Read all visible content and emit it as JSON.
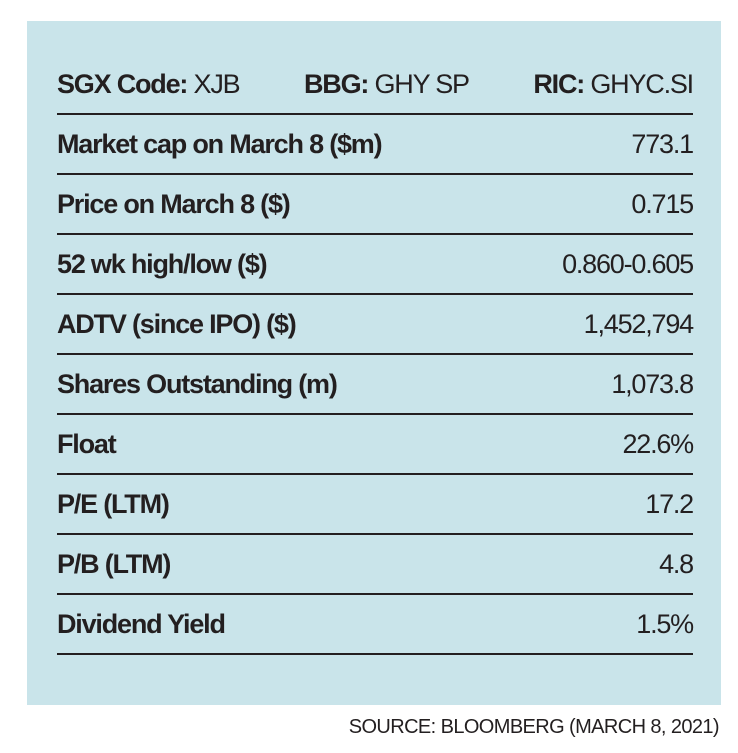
{
  "header": {
    "sgx_label": "SGX Code:",
    "sgx_value": "XJB",
    "bbg_label": "BBG:",
    "bbg_value": "GHY SP",
    "ric_label": "RIC:",
    "ric_value": "GHYC.SI"
  },
  "rows": [
    {
      "label": "Market cap on March 8 ($m)",
      "value": "773.1"
    },
    {
      "label": "Price on March 8 ($)",
      "value": "0.715"
    },
    {
      "label": "52 wk high/low ($)",
      "value": "0.860-0.605"
    },
    {
      "label": "ADTV (since IPO) ($)",
      "value": "1,452,794"
    },
    {
      "label": "Shares Outstanding (m)",
      "value": "1,073.8"
    },
    {
      "label": "Float",
      "value": "22.6%"
    },
    {
      "label": "P/E (LTM)",
      "value": "17.2"
    },
    {
      "label": "P/B (LTM)",
      "value": "4.8"
    },
    {
      "label": "Dividend Yield",
      "value": "1.5%"
    }
  ],
  "source": "SOURCE: BLOOMBERG (MARCH 8, 2021)",
  "colors": {
    "panel_background": "#c9e4ea",
    "text": "#231f20"
  }
}
